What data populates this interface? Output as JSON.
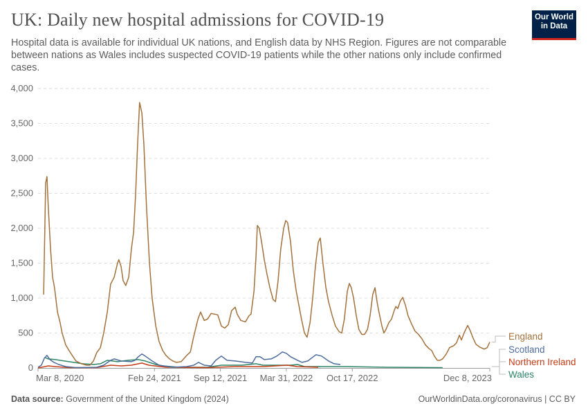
{
  "header": {
    "title": "UK: Daily new hospital admissions for COVID-19",
    "subtitle": "Hospital data is available for individual UK nations, and English data by NHS Region. Figures are not comparable between nations as Wales includes suspected COVID-19 patients while the other nations only include confirmed cases.",
    "logo_line1": "Our World",
    "logo_line2": "in Data"
  },
  "footer": {
    "source_label": "Data source:",
    "source_text": "Government of the United Kingdom (2024)",
    "url": "OurWorldinData.org/coronavirus | CC BY"
  },
  "chart_data": {
    "type": "line",
    "xlim": [
      "2020-03-08",
      "2023-12-08"
    ],
    "ylim": [
      0,
      4000
    ],
    "yticks": [
      0,
      500,
      1000,
      1500,
      2000,
      2500,
      3000,
      3500,
      4000
    ],
    "ytick_labels": [
      "0",
      "500",
      "1,000",
      "1,500",
      "2,000",
      "2,500",
      "3,000",
      "3,500",
      "4,000"
    ],
    "xticks": [
      {
        "date": "2020-03-08",
        "label": "Mar 8, 2020"
      },
      {
        "date": "2021-02-24",
        "label": "Feb 24, 2021"
      },
      {
        "date": "2021-09-12",
        "label": "Sep 12, 2021"
      },
      {
        "date": "2022-03-31",
        "label": "Mar 31, 2022"
      },
      {
        "date": "2022-10-17",
        "label": "Oct 17, 2022"
      },
      {
        "date": "2023-12-08",
        "label": "Dec 8, 2023"
      }
    ],
    "grid": "horizontal dashed",
    "legend": "right (line-end labels)",
    "series": [
      {
        "name": "England",
        "color": "#a2703a",
        "points": [
          [
            "2020-03-25",
            1050
          ],
          [
            "2020-03-31",
            2650
          ],
          [
            "2020-04-04",
            2740
          ],
          [
            "2020-04-08",
            2300
          ],
          [
            "2020-04-15",
            1700
          ],
          [
            "2020-04-21",
            1300
          ],
          [
            "2020-04-27",
            1150
          ],
          [
            "2020-05-06",
            800
          ],
          [
            "2020-05-14",
            650
          ],
          [
            "2020-05-20",
            500
          ],
          [
            "2020-05-31",
            330
          ],
          [
            "2020-06-10",
            250
          ],
          [
            "2020-06-21",
            170
          ],
          [
            "2020-07-01",
            100
          ],
          [
            "2020-07-18",
            60
          ],
          [
            "2020-08-02",
            40
          ],
          [
            "2020-08-12",
            40
          ],
          [
            "2020-08-23",
            100
          ],
          [
            "2020-09-02",
            220
          ],
          [
            "2020-09-13",
            290
          ],
          [
            "2020-09-23",
            500
          ],
          [
            "2020-10-04",
            800
          ],
          [
            "2020-10-14",
            1200
          ],
          [
            "2020-10-25",
            1300
          ],
          [
            "2020-11-04",
            1500
          ],
          [
            "2020-11-08",
            1550
          ],
          [
            "2020-11-15",
            1450
          ],
          [
            "2020-11-21",
            1250
          ],
          [
            "2020-11-29",
            1180
          ],
          [
            "2020-12-08",
            1300
          ],
          [
            "2020-12-16",
            1700
          ],
          [
            "2020-12-23",
            1950
          ],
          [
            "2020-12-29",
            2500
          ],
          [
            "2021-01-04",
            3200
          ],
          [
            "2021-01-10",
            3800
          ],
          [
            "2021-01-17",
            3650
          ],
          [
            "2021-01-23",
            3200
          ],
          [
            "2021-01-31",
            2300
          ],
          [
            "2021-02-09",
            1500
          ],
          [
            "2021-02-17",
            1000
          ],
          [
            "2021-02-28",
            600
          ],
          [
            "2021-03-10",
            380
          ],
          [
            "2021-03-21",
            250
          ],
          [
            "2021-03-31",
            180
          ],
          [
            "2021-04-11",
            130
          ],
          [
            "2021-04-21",
            100
          ],
          [
            "2021-05-02",
            80
          ],
          [
            "2021-05-16",
            90
          ],
          [
            "2021-06-02",
            180
          ],
          [
            "2021-06-13",
            230
          ],
          [
            "2021-06-23",
            450
          ],
          [
            "2021-07-06",
            700
          ],
          [
            "2021-07-14",
            800
          ],
          [
            "2021-07-25",
            680
          ],
          [
            "2021-08-04",
            700
          ],
          [
            "2021-08-15",
            780
          ],
          [
            "2021-08-25",
            770
          ],
          [
            "2021-09-04",
            760
          ],
          [
            "2021-09-15",
            600
          ],
          [
            "2021-09-25",
            570
          ],
          [
            "2021-10-06",
            620
          ],
          [
            "2021-10-16",
            820
          ],
          [
            "2021-10-27",
            870
          ],
          [
            "2021-11-02",
            770
          ],
          [
            "2021-11-13",
            680
          ],
          [
            "2021-11-27",
            660
          ],
          [
            "2021-12-08",
            750
          ],
          [
            "2021-12-14",
            770
          ],
          [
            "2021-12-23",
            1100
          ],
          [
            "2021-12-29",
            1600
          ],
          [
            "2022-01-02",
            2040
          ],
          [
            "2022-01-08",
            2000
          ],
          [
            "2022-01-15",
            1800
          ],
          [
            "2022-01-23",
            1550
          ],
          [
            "2022-01-31",
            1350
          ],
          [
            "2022-02-09",
            1150
          ],
          [
            "2022-02-19",
            980
          ],
          [
            "2022-02-26",
            950
          ],
          [
            "2022-03-06",
            1250
          ],
          [
            "2022-03-14",
            1700
          ],
          [
            "2022-03-23",
            2000
          ],
          [
            "2022-03-29",
            2110
          ],
          [
            "2022-04-04",
            2080
          ],
          [
            "2022-04-13",
            1800
          ],
          [
            "2022-04-21",
            1400
          ],
          [
            "2022-04-30",
            1100
          ],
          [
            "2022-05-08",
            900
          ],
          [
            "2022-05-16",
            700
          ],
          [
            "2022-05-25",
            500
          ],
          [
            "2022-06-02",
            440
          ],
          [
            "2022-06-11",
            650
          ],
          [
            "2022-06-19",
            1000
          ],
          [
            "2022-06-27",
            1450
          ],
          [
            "2022-07-06",
            1800
          ],
          [
            "2022-07-12",
            1860
          ],
          [
            "2022-07-20",
            1500
          ],
          [
            "2022-07-29",
            1150
          ],
          [
            "2022-08-06",
            950
          ],
          [
            "2022-08-17",
            750
          ],
          [
            "2022-08-27",
            600
          ],
          [
            "2022-09-07",
            520
          ],
          [
            "2022-09-15",
            500
          ],
          [
            "2022-09-23",
            700
          ],
          [
            "2022-10-02",
            1100
          ],
          [
            "2022-10-08",
            1210
          ],
          [
            "2022-10-14",
            1150
          ],
          [
            "2022-10-21",
            1000
          ],
          [
            "2022-10-29",
            750
          ],
          [
            "2022-11-06",
            550
          ],
          [
            "2022-11-15",
            480
          ],
          [
            "2022-11-23",
            480
          ],
          [
            "2022-12-02",
            550
          ],
          [
            "2022-12-10",
            750
          ],
          [
            "2022-12-18",
            1050
          ],
          [
            "2022-12-25",
            1150
          ],
          [
            "2022-12-31",
            950
          ],
          [
            "2023-01-06",
            800
          ],
          [
            "2023-01-15",
            600
          ],
          [
            "2023-01-21",
            500
          ],
          [
            "2023-01-27",
            550
          ],
          [
            "2023-02-05",
            650
          ],
          [
            "2023-02-13",
            700
          ],
          [
            "2023-02-21",
            820
          ],
          [
            "2023-02-26",
            880
          ],
          [
            "2023-03-04",
            850
          ],
          [
            "2023-03-12",
            960
          ],
          [
            "2023-03-19",
            1010
          ],
          [
            "2023-03-27",
            900
          ],
          [
            "2023-04-04",
            750
          ],
          [
            "2023-04-15",
            630
          ],
          [
            "2023-04-25",
            530
          ],
          [
            "2023-05-06",
            480
          ],
          [
            "2023-05-16",
            420
          ],
          [
            "2023-05-27",
            330
          ],
          [
            "2023-06-06",
            280
          ],
          [
            "2023-06-15",
            250
          ],
          [
            "2023-06-23",
            170
          ],
          [
            "2023-07-02",
            110
          ],
          [
            "2023-07-10",
            110
          ],
          [
            "2023-07-18",
            130
          ],
          [
            "2023-07-29",
            200
          ],
          [
            "2023-08-08",
            290
          ],
          [
            "2023-08-21",
            320
          ],
          [
            "2023-08-29",
            360
          ],
          [
            "2023-09-07",
            470
          ],
          [
            "2023-09-13",
            400
          ],
          [
            "2023-09-21",
            500
          ],
          [
            "2023-10-02",
            610
          ],
          [
            "2023-10-10",
            530
          ],
          [
            "2023-10-19",
            420
          ],
          [
            "2023-10-27",
            340
          ],
          [
            "2023-11-07",
            300
          ],
          [
            "2023-11-21",
            270
          ],
          [
            "2023-11-30",
            290
          ],
          [
            "2023-12-08",
            370
          ]
        ]
      },
      {
        "name": "Scotland",
        "color": "#4c6a9c",
        "points": [
          [
            "2020-03-08",
            10
          ],
          [
            "2020-03-18",
            40
          ],
          [
            "2020-03-27",
            140
          ],
          [
            "2020-04-04",
            180
          ],
          [
            "2020-04-13",
            120
          ],
          [
            "2020-04-25",
            80
          ],
          [
            "2020-05-10",
            50
          ],
          [
            "2020-05-31",
            20
          ],
          [
            "2020-07-01",
            5
          ],
          [
            "2020-09-02",
            10
          ],
          [
            "2020-09-23",
            40
          ],
          [
            "2020-10-14",
            110
          ],
          [
            "2020-10-25",
            130
          ],
          [
            "2020-11-15",
            100
          ],
          [
            "2020-12-16",
            90
          ],
          [
            "2020-12-27",
            110
          ],
          [
            "2021-01-06",
            160
          ],
          [
            "2021-01-17",
            200
          ],
          [
            "2021-01-27",
            170
          ],
          [
            "2021-02-17",
            100
          ],
          [
            "2021-03-10",
            40
          ],
          [
            "2021-04-21",
            10
          ],
          [
            "2021-06-02",
            20
          ],
          [
            "2021-06-23",
            40
          ],
          [
            "2021-07-08",
            80
          ],
          [
            "2021-07-25",
            40
          ],
          [
            "2021-08-15",
            30
          ],
          [
            "2021-08-29",
            110
          ],
          [
            "2021-09-15",
            170
          ],
          [
            "2021-10-02",
            110
          ],
          [
            "2021-10-27",
            100
          ],
          [
            "2021-11-27",
            80
          ],
          [
            "2021-12-18",
            70
          ],
          [
            "2021-12-29",
            160
          ],
          [
            "2022-01-10",
            160
          ],
          [
            "2022-01-23",
            120
          ],
          [
            "2022-02-13",
            130
          ],
          [
            "2022-03-02",
            170
          ],
          [
            "2022-03-19",
            230
          ],
          [
            "2022-03-31",
            210
          ],
          [
            "2022-04-13",
            160
          ],
          [
            "2022-05-04",
            110
          ],
          [
            "2022-05-18",
            80
          ],
          [
            "2022-06-04",
            100
          ],
          [
            "2022-06-29",
            190
          ],
          [
            "2022-07-16",
            170
          ],
          [
            "2022-08-06",
            100
          ],
          [
            "2022-08-23",
            60
          ],
          [
            "2022-09-11",
            50
          ]
        ]
      },
      {
        "name": "Northern Ireland",
        "color": "#c33c17",
        "points": [
          [
            "2020-03-08",
            0
          ],
          [
            "2020-04-08",
            30
          ],
          [
            "2020-04-29",
            20
          ],
          [
            "2020-06-10",
            5
          ],
          [
            "2020-09-02",
            5
          ],
          [
            "2020-10-14",
            40
          ],
          [
            "2020-11-15",
            30
          ],
          [
            "2020-12-16",
            40
          ],
          [
            "2021-01-17",
            70
          ],
          [
            "2021-02-07",
            40
          ],
          [
            "2021-03-31",
            10
          ],
          [
            "2021-08-04",
            5
          ],
          [
            "2021-10-27",
            20
          ],
          [
            "2022-01-19",
            20
          ],
          [
            "2022-04-02",
            40
          ],
          [
            "2022-05-04",
            20
          ],
          [
            "2022-07-06",
            10
          ]
        ]
      },
      {
        "name": "Wales",
        "color": "#2c8465",
        "points": [
          [
            "2020-03-29",
            150
          ],
          [
            "2020-04-08",
            130
          ],
          [
            "2020-04-29",
            120
          ],
          [
            "2020-06-10",
            90
          ],
          [
            "2020-07-22",
            60
          ],
          [
            "2020-08-23",
            50
          ],
          [
            "2020-09-13",
            60
          ],
          [
            "2020-10-04",
            110
          ],
          [
            "2020-11-04",
            90
          ],
          [
            "2020-12-06",
            110
          ],
          [
            "2021-01-06",
            120
          ],
          [
            "2021-01-27",
            100
          ],
          [
            "2021-02-28",
            50
          ],
          [
            "2021-03-21",
            30
          ],
          [
            "2021-05-12",
            10
          ],
          [
            "2021-08-04",
            10
          ],
          [
            "2021-09-15",
            40
          ],
          [
            "2021-11-17",
            40
          ],
          [
            "2021-12-29",
            60
          ],
          [
            "2022-01-19",
            40
          ],
          [
            "2022-04-13",
            40
          ],
          [
            "2022-05-04",
            50
          ],
          [
            "2022-05-25",
            20
          ],
          [
            "2022-09-28",
            20
          ],
          [
            "2023-02-01",
            10
          ],
          [
            "2023-07-18",
            5
          ]
        ]
      }
    ]
  }
}
